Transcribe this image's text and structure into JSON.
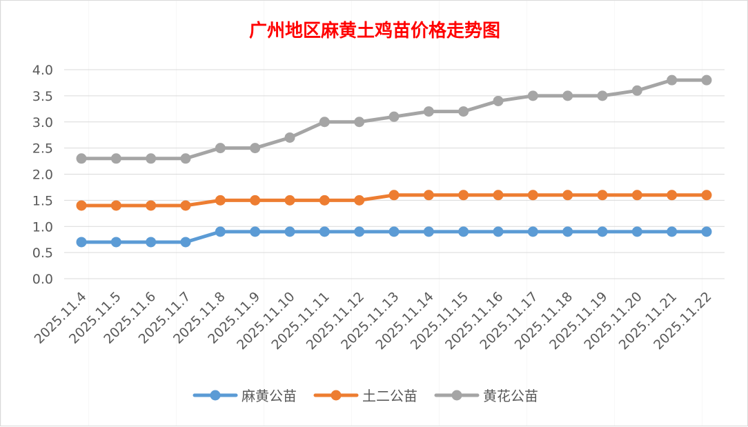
{
  "colors": {
    "title": "#ff0000",
    "grid": "#d9d9d9",
    "axis_text": "#595959",
    "series": [
      "#5b9bd5",
      "#ed7d31",
      "#a5a5a5"
    ]
  },
  "chart_data": {
    "type": "line",
    "title": "广州地区麻黄土鸡苗价格走势图",
    "xlabel": "",
    "ylabel": "",
    "ylim": [
      0,
      4
    ],
    "yticks": [
      "0.0",
      "0.5",
      "1.0",
      "1.5",
      "2.0",
      "2.5",
      "3.0",
      "3.5",
      "4.0"
    ],
    "grid": true,
    "legend_position": "bottom",
    "categories": [
      "2025.11.4",
      "2025.11.5",
      "2025.11.6",
      "2025.11.7",
      "2025.11.8",
      "2025.11.9",
      "2025.11.10",
      "2025.11.11",
      "2025.11.12",
      "2025.11.13",
      "2025.11.14",
      "2025.11.15",
      "2025.11.16",
      "2025.11.17",
      "2025.11.18",
      "2025.11.19",
      "2025.11.20",
      "2025.11.21",
      "2025.11.22"
    ],
    "series": [
      {
        "name": "麻黄公苗",
        "values": [
          0.7,
          0.7,
          0.7,
          0.7,
          0.9,
          0.9,
          0.9,
          0.9,
          0.9,
          0.9,
          0.9,
          0.9,
          0.9,
          0.9,
          0.9,
          0.9,
          0.9,
          0.9,
          0.9
        ]
      },
      {
        "name": "土二公苗",
        "values": [
          1.4,
          1.4,
          1.4,
          1.4,
          1.5,
          1.5,
          1.5,
          1.5,
          1.5,
          1.6,
          1.6,
          1.6,
          1.6,
          1.6,
          1.6,
          1.6,
          1.6,
          1.6,
          1.6
        ]
      },
      {
        "name": "黄花公苗",
        "values": [
          2.3,
          2.3,
          2.3,
          2.3,
          2.5,
          2.5,
          2.7,
          3.0,
          3.0,
          3.1,
          3.2,
          3.2,
          3.4,
          3.5,
          3.5,
          3.5,
          3.6,
          3.8,
          3.8
        ]
      }
    ]
  }
}
